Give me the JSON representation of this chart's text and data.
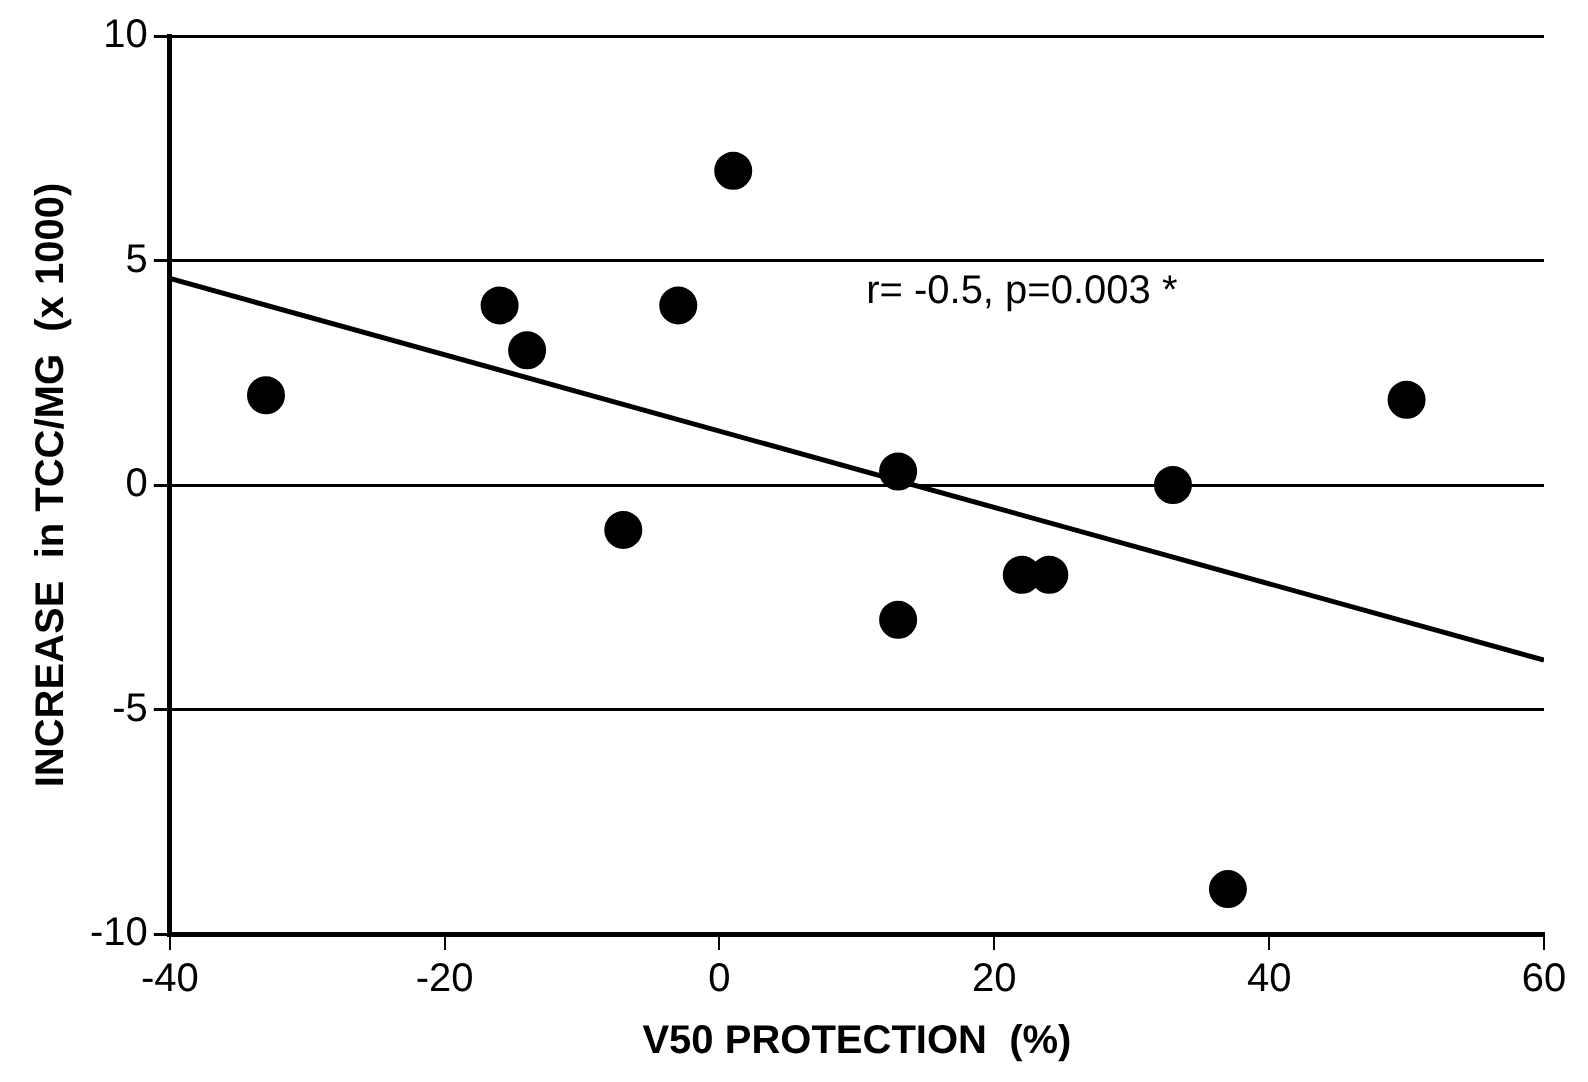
{
  "chart_data": {
    "type": "scatter",
    "xlabel": "V50 PROTECTION  (%)",
    "ylabel": "INCREASE  in TCC/MG  (x 1000)",
    "annotations": [
      "r= -0.5, p=0.003 *"
    ],
    "xlim": [
      -40,
      60
    ],
    "xticks": [
      -40,
      -20,
      0,
      20,
      40,
      60
    ],
    "ylim": [
      -10,
      10
    ],
    "yticks": [
      -10,
      -5,
      0,
      5,
      10
    ],
    "grid": "y",
    "legend": false,
    "series": [
      {
        "type": "scatter",
        "marker": "circle",
        "color": "#000000",
        "x": [
          -33,
          -16,
          -14,
          -3,
          1,
          -7,
          13,
          13,
          22,
          24,
          33,
          50,
          37
        ],
        "values": [
          2,
          4,
          3,
          4,
          7,
          -1,
          0.3,
          -3,
          -2,
          -2,
          0,
          1.9,
          -9
        ]
      },
      {
        "type": "line",
        "color": "#000000",
        "line_style": "solid",
        "x": [
          -40,
          60
        ],
        "values": [
          4.6,
          -3.9
        ]
      }
    ]
  }
}
